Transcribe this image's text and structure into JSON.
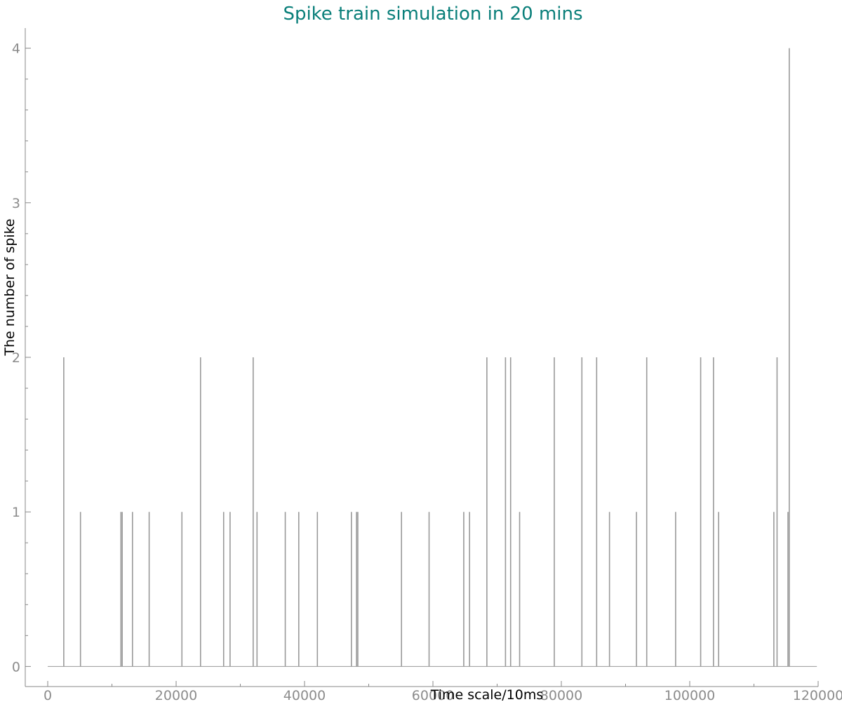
{
  "chart_data": {
    "type": "line",
    "title": "Spike train simulation in 20 mins",
    "xlabel": "Time scale/10ms",
    "ylabel": "The number of spike",
    "xlim": [
      -3500,
      120000
    ],
    "ylim": [
      -0.13,
      4.13
    ],
    "x_ticks": [
      0,
      20000,
      40000,
      60000,
      80000,
      100000,
      120000
    ],
    "x_tick_labels": [
      "0",
      "20000",
      "40000",
      "60000",
      "80000",
      "100000",
      "120000"
    ],
    "y_ticks": [
      0,
      1,
      2,
      3,
      4
    ],
    "y_tick_labels": [
      "0",
      "1",
      "2",
      "3",
      "4"
    ],
    "grid": false,
    "line_color": "#999999",
    "axis_color": "#888888",
    "title_color": "#0a7f7a",
    "baseline": {
      "x_start": 0,
      "x_end": 119800,
      "y": 0
    },
    "series": [
      {
        "spikes": [
          {
            "x": 2500,
            "y": 2
          },
          {
            "x": 5100,
            "y": 1
          },
          {
            "x": 11400,
            "y": 1
          },
          {
            "x": 11600,
            "y": 1
          },
          {
            "x": 13200,
            "y": 1
          },
          {
            "x": 15800,
            "y": 1
          },
          {
            "x": 20900,
            "y": 1
          },
          {
            "x": 23800,
            "y": 2
          },
          {
            "x": 27400,
            "y": 1
          },
          {
            "x": 28400,
            "y": 1
          },
          {
            "x": 32000,
            "y": 2
          },
          {
            "x": 32600,
            "y": 1
          },
          {
            "x": 37000,
            "y": 1
          },
          {
            "x": 39100,
            "y": 1
          },
          {
            "x": 42000,
            "y": 1
          },
          {
            "x": 47300,
            "y": 1
          },
          {
            "x": 48100,
            "y": 1
          },
          {
            "x": 48300,
            "y": 1
          },
          {
            "x": 55100,
            "y": 1
          },
          {
            "x": 59400,
            "y": 1
          },
          {
            "x": 64800,
            "y": 1
          },
          {
            "x": 65700,
            "y": 1
          },
          {
            "x": 68400,
            "y": 2
          },
          {
            "x": 71300,
            "y": 2
          },
          {
            "x": 72100,
            "y": 2
          },
          {
            "x": 73500,
            "y": 1
          },
          {
            "x": 78900,
            "y": 2
          },
          {
            "x": 83200,
            "y": 2
          },
          {
            "x": 85500,
            "y": 2
          },
          {
            "x": 87500,
            "y": 1
          },
          {
            "x": 91700,
            "y": 1
          },
          {
            "x": 93300,
            "y": 2
          },
          {
            "x": 97800,
            "y": 1
          },
          {
            "x": 101700,
            "y": 2
          },
          {
            "x": 103700,
            "y": 2
          },
          {
            "x": 104500,
            "y": 1
          },
          {
            "x": 113100,
            "y": 1
          },
          {
            "x": 113600,
            "y": 2
          },
          {
            "x": 115300,
            "y": 1
          },
          {
            "x": 115500,
            "y": 4
          }
        ]
      }
    ]
  }
}
